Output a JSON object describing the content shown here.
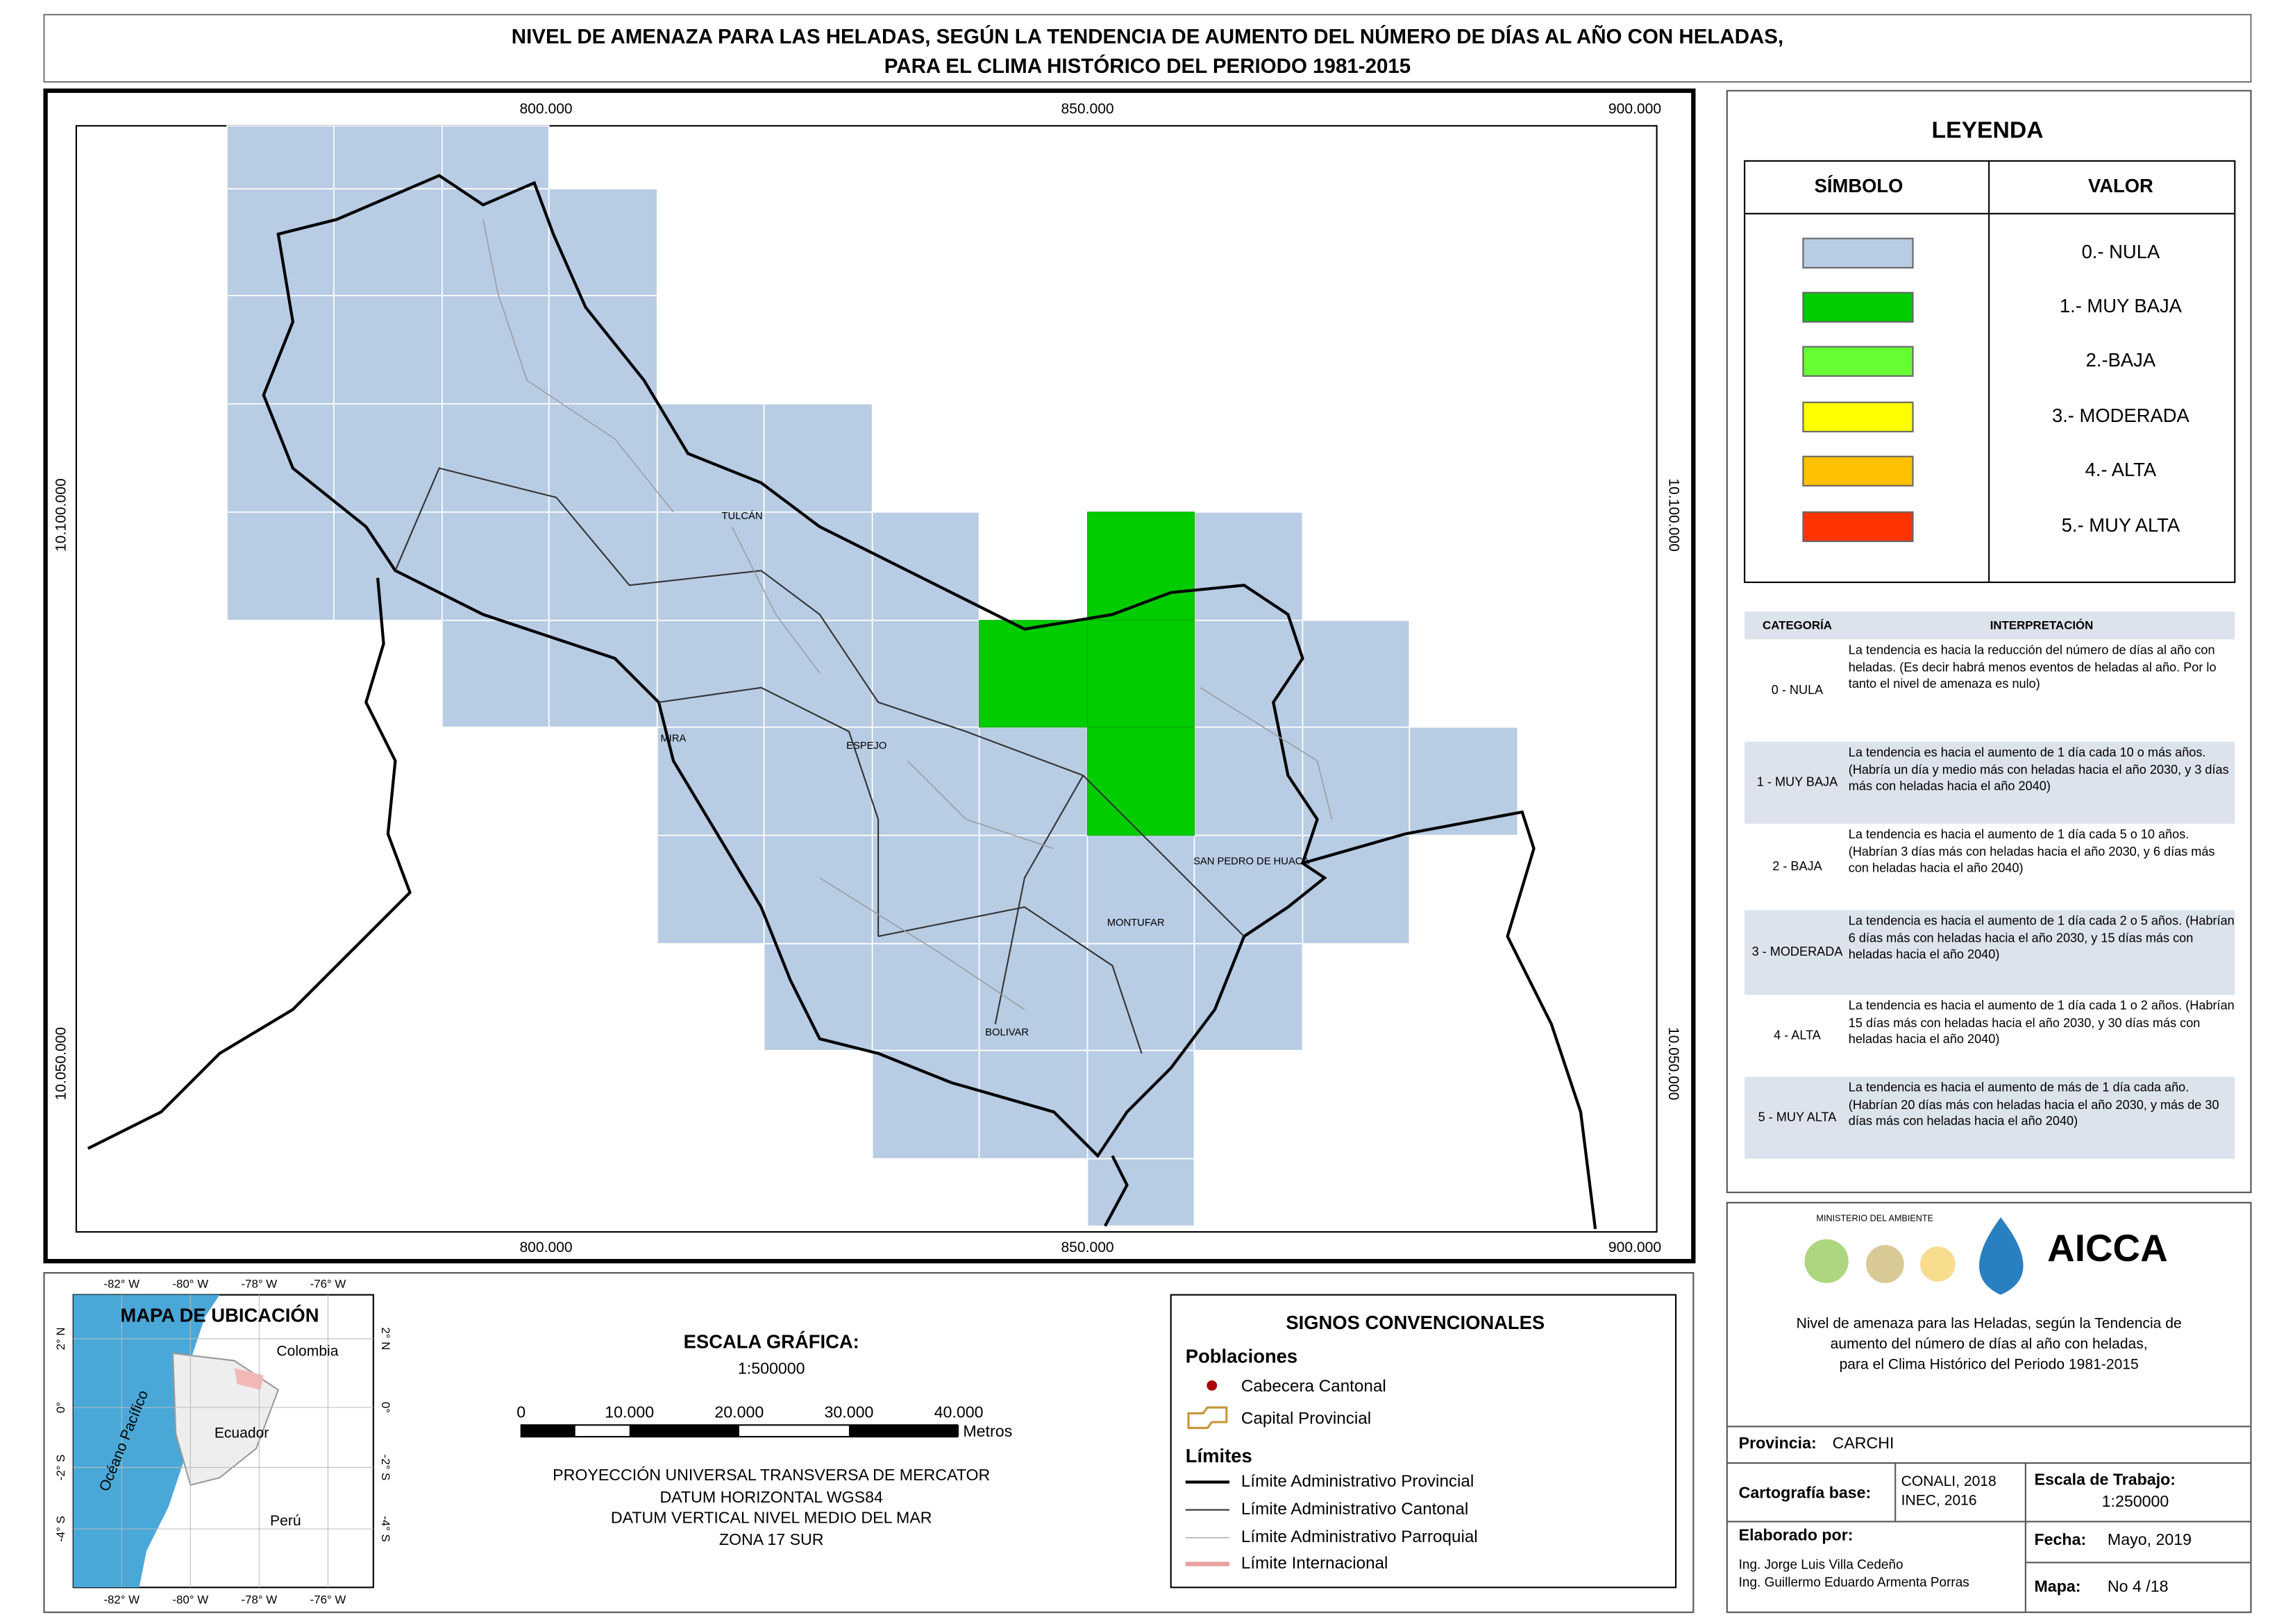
{
  "title": [
    "NIVEL DE AMENAZA PARA LAS HELADAS, SEGÚN LA TENDENCIA DE AUMENTO DEL NÚMERO DE DÍAS AL AÑO CON HELADAS,",
    "PARA EL CLIMA HISTÓRICO DEL PERIODO 1981-2015"
  ],
  "map": {
    "x_labels": [
      "800.000",
      "850.000",
      "900.000"
    ],
    "y_labels": [
      "10.100.000",
      "10.050.000"
    ],
    "places": [
      "TULCÁN",
      "MIRA",
      "ESPEJO",
      "SAN PEDRO DE HUACA",
      "MONTUFAR",
      "BOLIVAR"
    ]
  },
  "legend": {
    "title": "LEYENDA",
    "col_symbol": "SÍMBOLO",
    "col_value": "VALOR",
    "items": [
      {
        "label": "0.- NULA",
        "color": "#b8cce4"
      },
      {
        "label": "1.- MUY BAJA",
        "color": "#00cc00"
      },
      {
        "label": "2.-BAJA",
        "color": "#66ff33"
      },
      {
        "label": "3.- MODERADA",
        "color": "#ffff00"
      },
      {
        "label": "4.- ALTA",
        "color": "#ffc000"
      },
      {
        "label": "5.- MUY ALTA",
        "color": "#ff3300"
      }
    ]
  },
  "interpretation": {
    "headers": [
      "CATEGORÍA",
      "INTERPRETACIÓN"
    ],
    "rows": [
      [
        "0 - NULA",
        "La tendencia es hacia la reducción del número de días al año con heladas. (Es decir habrá menos eventos de heladas al año. Por lo tanto el nivel de amenaza es nulo)"
      ],
      [
        "1 - MUY BAJA",
        "La tendencia es hacia el aumento de 1 día cada 10 o más años. (Habría un día y medio más con heladas hacia el año 2030, y 3 días más con heladas hacia el año 2040)"
      ],
      [
        "2 - BAJA",
        "La tendencia es hacia el aumento de 1 día cada 5 o 10 años. (Habrían 3 días más con heladas hacia el año 2030, y 6 días más con heladas hacia el año 2040)"
      ],
      [
        "3 - MODERADA",
        "La tendencia es hacia el aumento de 1 día cada 2 o 5 años. (Habrían 6 días más con heladas hacia el año 2030, y 15 días más con heladas hacia el año 2040)"
      ],
      [
        "4 - ALTA",
        "La tendencia es hacia el aumento de 1 día cada 1 o 2 años. (Habrían 15 días más con heladas hacia el año 2030, y 30 días más con heladas hacia el año 2040)"
      ],
      [
        "5 - MUY ALTA",
        "La tendencia es hacia el aumento de más de 1 día cada año. (Habrían 20 días más con heladas hacia el año 2030, y más de 30 días más con heladas hacia el año 2040)"
      ]
    ]
  },
  "location_map": {
    "title": "MAPA DE UBICACIÓN",
    "lon_labels": [
      "-82° W",
      "-80° W",
      "-78° W",
      "-76° W"
    ],
    "lat_labels": [
      "2° N",
      "0°",
      "-2° S",
      "-4° S"
    ],
    "countries": [
      "Colombia",
      "Ecuador",
      "Perú"
    ],
    "ocean": "Océano Pacífico"
  },
  "scale": {
    "title": "ESCALA GRÁFICA:",
    "ratio": "1:500000",
    "ticks": [
      "0",
      "10.000",
      "20.000",
      "30.000",
      "40.000"
    ],
    "unit": "Metros",
    "projection": [
      "PROYECCIÓN UNIVERSAL TRANSVERSA DE MERCATOR",
      "DATUM HORIZONTAL WGS84",
      "DATUM VERTICAL NIVEL MEDIO DEL MAR",
      "ZONA 17 SUR"
    ]
  },
  "conventions": {
    "title": "SIGNOS CONVENCIONALES",
    "populations": "Poblaciones",
    "pop_items": [
      "Cabecera Cantonal",
      "Capital Provincial"
    ],
    "limits": "Límites",
    "limit_items": [
      "Límite Administrativo Provincial",
      "Límite Administrativo Cantonal",
      "Límite Administrativo Parroquial",
      "Límite Internacional"
    ]
  },
  "info": {
    "institution": "MINISTERIO DEL AMBIENTE",
    "logo_text": "AICCA",
    "description": [
      "Nivel de amenaza para las Heladas, según la Tendencia de",
      "aumento del número de días al año con heladas,",
      "para el Clima Histórico del Periodo 1981-2015"
    ],
    "province_label": "Provincia:",
    "province": "CARCHI",
    "carto_label": "Cartografía base:",
    "carto": [
      "CONALI, 2018",
      "INEC, 2016"
    ],
    "scale_label": "Escala de Trabajo:",
    "scale": "1:250000",
    "made_by_label": "Elaborado por:",
    "authors": [
      "Ing. Jorge Luis Villa Cedeño",
      "Ing. Guillermo Eduardo Armenta Porras"
    ],
    "date_label": "Fecha:",
    "date": "Mayo, 2019",
    "map_label": "Mapa:",
    "map_no": "No 4 /18"
  }
}
